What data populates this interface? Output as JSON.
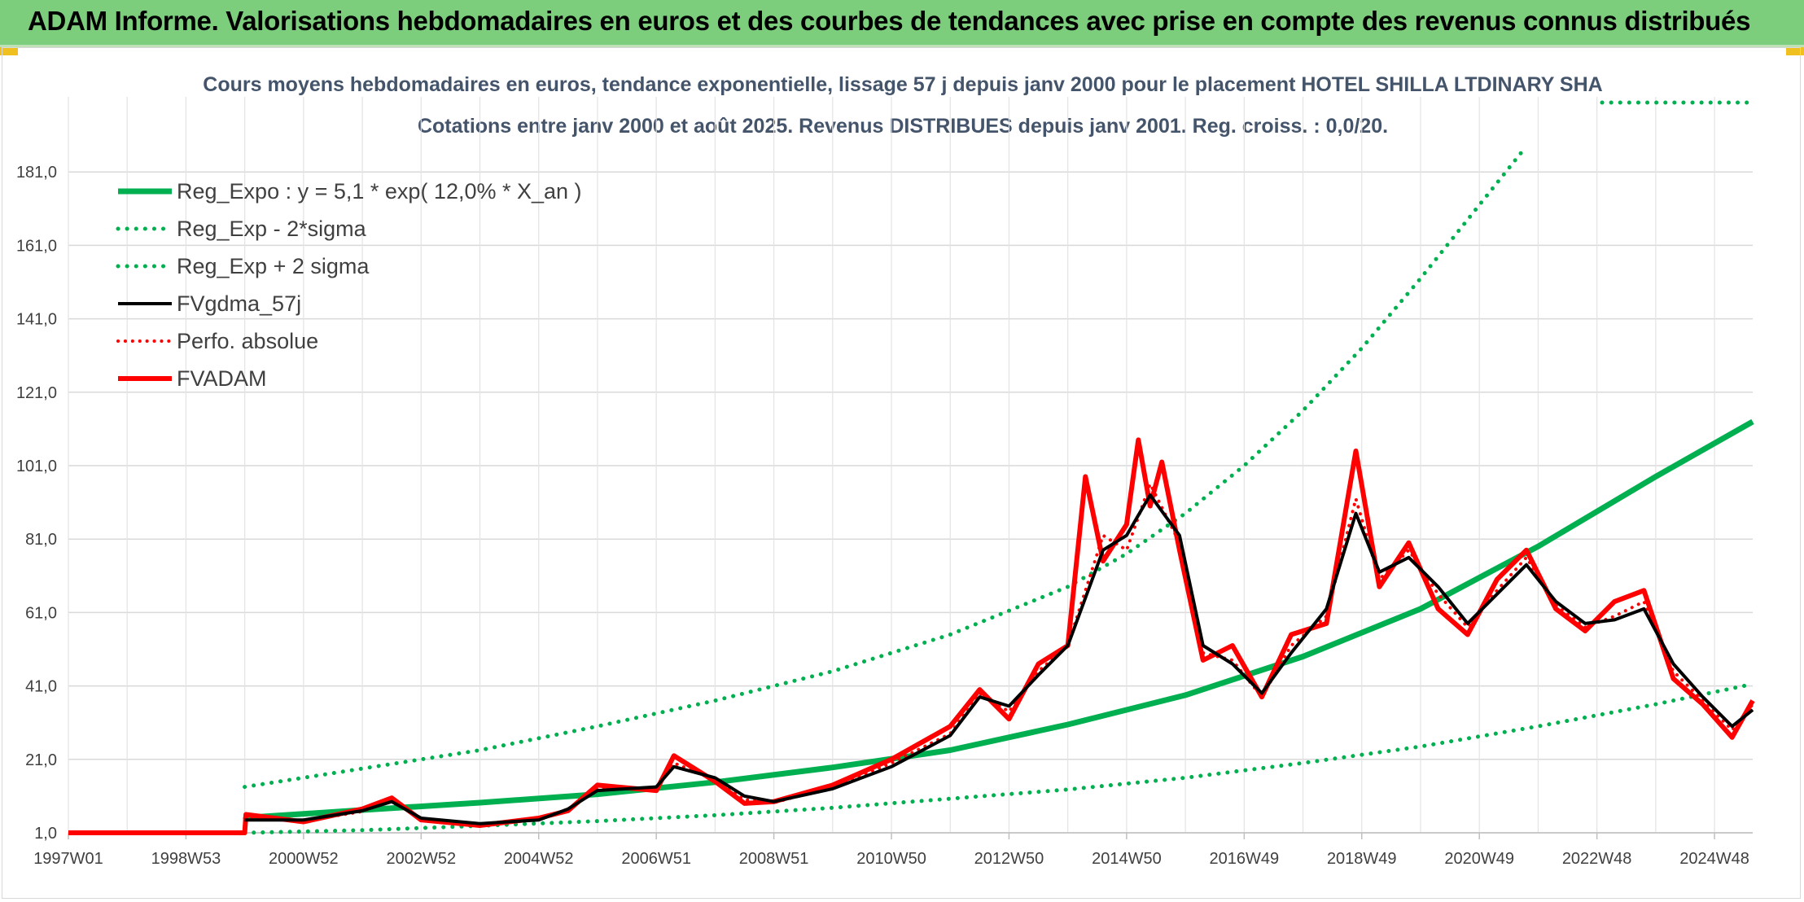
{
  "header": {
    "title": "ADAM Informe. Valorisations hebdomadaires en euros et des courbes de tendances avec prise en compte des revenus connus distribués"
  },
  "colors": {
    "header_bg": "#7ccd7c",
    "reg_green": "#00b050",
    "fvadam_red": "#ff0000",
    "fvgdma_black": "#000000"
  },
  "chart_data": {
    "type": "line",
    "title": "Cours moyens hebdomadaires en euros, tendance exponentielle, lissage 57 j depuis janv 2000 pour le placement HOTEL SHILLA LTDINARY SHA",
    "subtitle": "Cotations entre janv 2000 et août 2025. Revenus DISTRIBUES depuis janv 2001. Reg. croiss. : 0,0/20.",
    "xlabel": "",
    "ylabel": "",
    "ylim": [
      1,
      195
    ],
    "xlim": [
      1997.0,
      2025.65
    ],
    "yticks": [
      "181,0",
      "161,0",
      "141,0",
      "121,0",
      "101,0",
      "81,0",
      "61,0",
      "41,0",
      "21,0",
      "1,0"
    ],
    "xticks": [
      {
        "label": "1997W01",
        "x": 1997.0
      },
      {
        "label": "1998W53",
        "x": 1999.0
      },
      {
        "label": "2000W52",
        "x": 2001.0
      },
      {
        "label": "2002W52",
        "x": 2003.0
      },
      {
        "label": "2004W52",
        "x": 2005.0
      },
      {
        "label": "2006W51",
        "x": 2007.0
      },
      {
        "label": "2008W51",
        "x": 2009.0
      },
      {
        "label": "2010W50",
        "x": 2011.0
      },
      {
        "label": "2012W50",
        "x": 2013.0
      },
      {
        "label": "2014W50",
        "x": 2015.0
      },
      {
        "label": "2016W49",
        "x": 2017.0
      },
      {
        "label": "2018W49",
        "x": 2019.0
      },
      {
        "label": "2020W49",
        "x": 2021.0
      },
      {
        "label": "2022W48",
        "x": 2023.0
      },
      {
        "label": "2024W48",
        "x": 2025.0
      }
    ],
    "grid": true,
    "legend_position": "top-left",
    "legend": [
      {
        "label": "Reg_Expo : y = 5,1 * exp( 12,0% *  X_an )",
        "color": "#00b050",
        "style": "solid",
        "width": 7
      },
      {
        "label": "Reg_Exp - 2*sigma",
        "color": "#00b050",
        "style": "dotted",
        "width": 5
      },
      {
        "label": "Reg_Exp + 2 sigma",
        "color": "#00b050",
        "style": "dotted",
        "width": 5
      },
      {
        "label": "FVgdma_57j",
        "color": "#000000",
        "style": "solid",
        "width": 4
      },
      {
        "label": "Perfo. absolue",
        "color": "#ff0000",
        "style": "dotted",
        "width": 4
      },
      {
        "label": "FVADAM",
        "color": "#ff0000",
        "style": "solid",
        "width": 6
      }
    ],
    "series": [
      {
        "name": "Reg_Expo : y = 5,1 * exp( 12,0% *  X_an )",
        "x": [
          2000.0,
          2002.0,
          2004.0,
          2006.0,
          2008.0,
          2010.0,
          2012.0,
          2014.0,
          2016.0,
          2018.0,
          2020.0,
          2022.0,
          2024.0,
          2025.65
        ],
        "y": [
          5.1,
          7.2,
          9.2,
          11.5,
          14.8,
          18.8,
          23.5,
          30.5,
          38.5,
          49.0,
          62.0,
          79.0,
          98.0,
          113.0
        ]
      },
      {
        "name": "Reg_Exp - 2*sigma",
        "x": [
          2000.0,
          2002.0,
          2004.0,
          2006.0,
          2008.0,
          2010.0,
          2012.0,
          2014.0,
          2016.0,
          2018.0,
          2020.0,
          2022.0,
          2024.0,
          2025.65
        ],
        "y": [
          1.0,
          1.7,
          2.9,
          4.2,
          5.8,
          7.8,
          10.3,
          12.8,
          16.0,
          20.0,
          24.5,
          30.0,
          36.0,
          41.5
        ]
      },
      {
        "name": "Reg_Exp + 2 sigma",
        "x": [
          2000.0,
          2002.0,
          2004.0,
          2006.0,
          2008.0,
          2010.0,
          2012.0,
          2014.0,
          2015.0,
          2016.0,
          2017.0,
          2018.0,
          2019.0,
          2020.0,
          2021.0,
          2021.75
        ],
        "y": [
          13.5,
          18.5,
          23.5,
          30.0,
          37.0,
          45.0,
          55.0,
          68.0,
          77.0,
          88.0,
          101.0,
          116.0,
          133.0,
          152.0,
          172.0,
          187.0
        ]
      },
      {
        "name": "FVgdma_57j",
        "x": [
          2000.0,
          2001.0,
          2002.0,
          2002.5,
          2003.0,
          2004.0,
          2005.0,
          2005.5,
          2006.0,
          2007.0,
          2007.3,
          2008.0,
          2008.5,
          2009.0,
          2010.0,
          2011.0,
          2012.0,
          2012.5,
          2013.0,
          2013.5,
          2014.0,
          2014.6,
          2015.0,
          2015.4,
          2015.9,
          2016.3,
          2016.8,
          2017.3,
          2017.8,
          2018.4,
          2018.9,
          2019.3,
          2019.8,
          2020.3,
          2020.8,
          2021.3,
          2021.8,
          2022.3,
          2022.8,
          2023.3,
          2023.8,
          2024.3,
          2024.8,
          2025.3,
          2025.65
        ],
        "y": [
          4.5,
          4.5,
          7.0,
          9.5,
          5.0,
          3.5,
          4.5,
          7.5,
          12.5,
          13.5,
          19.0,
          16.0,
          11.0,
          9.5,
          13.0,
          19.0,
          27.5,
          38.0,
          35.5,
          44.0,
          52.0,
          78.0,
          82.0,
          93.0,
          82.0,
          52.0,
          47.0,
          39.0,
          50.0,
          62.0,
          88.0,
          72.0,
          76.0,
          68.0,
          58.0,
          66.0,
          74.0,
          64.0,
          58.0,
          59.0,
          62.0,
          47.0,
          38.0,
          30.0,
          34.5
        ]
      },
      {
        "name": "Perfo. absolue",
        "x": [
          2000.0,
          2001.0,
          2002.0,
          2002.5,
          2003.0,
          2004.0,
          2005.0,
          2005.5,
          2006.0,
          2007.0,
          2007.3,
          2008.0,
          2008.5,
          2009.0,
          2010.0,
          2011.0,
          2012.0,
          2012.5,
          2013.0,
          2013.5,
          2014.0,
          2014.6,
          2015.0,
          2015.4,
          2015.9,
          2016.3,
          2016.8,
          2017.3,
          2017.8,
          2018.4,
          2018.9,
          2019.3,
          2019.8,
          2020.3,
          2020.8,
          2021.3,
          2021.8,
          2022.3,
          2022.8,
          2023.3,
          2023.8,
          2024.3,
          2024.8,
          2025.3,
          2025.65
        ],
        "y": [
          5.0,
          4.2,
          6.8,
          10.0,
          4.8,
          3.3,
          4.6,
          7.2,
          13.0,
          13.0,
          20.0,
          15.5,
          10.0,
          9.2,
          13.5,
          20.0,
          28.0,
          39.0,
          34.0,
          45.0,
          52.0,
          82.0,
          78.0,
          96.0,
          80.0,
          50.0,
          48.0,
          38.0,
          52.0,
          60.0,
          92.0,
          70.0,
          78.0,
          66.0,
          57.0,
          67.0,
          76.0,
          63.0,
          57.0,
          60.0,
          64.0,
          45.0,
          37.0,
          29.0,
          36.0
        ]
      },
      {
        "name": "FVADAM",
        "x": [
          1997.0,
          2000.0,
          2000.02,
          2001.0,
          2002.0,
          2002.5,
          2003.0,
          2004.0,
          2005.0,
          2005.5,
          2006.0,
          2007.0,
          2007.3,
          2008.0,
          2008.5,
          2009.0,
          2010.0,
          2011.0,
          2012.0,
          2012.5,
          2013.0,
          2013.5,
          2014.0,
          2014.3,
          2014.6,
          2015.0,
          2015.2,
          2015.4,
          2015.6,
          2015.9,
          2016.3,
          2016.8,
          2017.3,
          2017.8,
          2018.4,
          2018.9,
          2019.3,
          2019.8,
          2020.3,
          2020.8,
          2021.3,
          2021.8,
          2022.3,
          2022.8,
          2023.3,
          2023.8,
          2024.3,
          2024.8,
          2025.3,
          2025.65
        ],
        "y": [
          1.0,
          1.0,
          6.0,
          4.0,
          7.5,
          10.5,
          4.5,
          3.0,
          5.0,
          7.0,
          14.0,
          12.5,
          22.0,
          15.0,
          9.0,
          9.5,
          14.0,
          21.0,
          30.0,
          40.0,
          32.0,
          47.0,
          52.0,
          98.0,
          75.0,
          85.0,
          108.0,
          90.0,
          102.0,
          78.0,
          48.0,
          52.0,
          38.0,
          55.0,
          58.0,
          105.0,
          68.0,
          80.0,
          62.0,
          55.0,
          70.0,
          78.0,
          62.0,
          56.0,
          64.0,
          67.0,
          43.0,
          36.0,
          27.0,
          37.0
        ]
      }
    ]
  }
}
